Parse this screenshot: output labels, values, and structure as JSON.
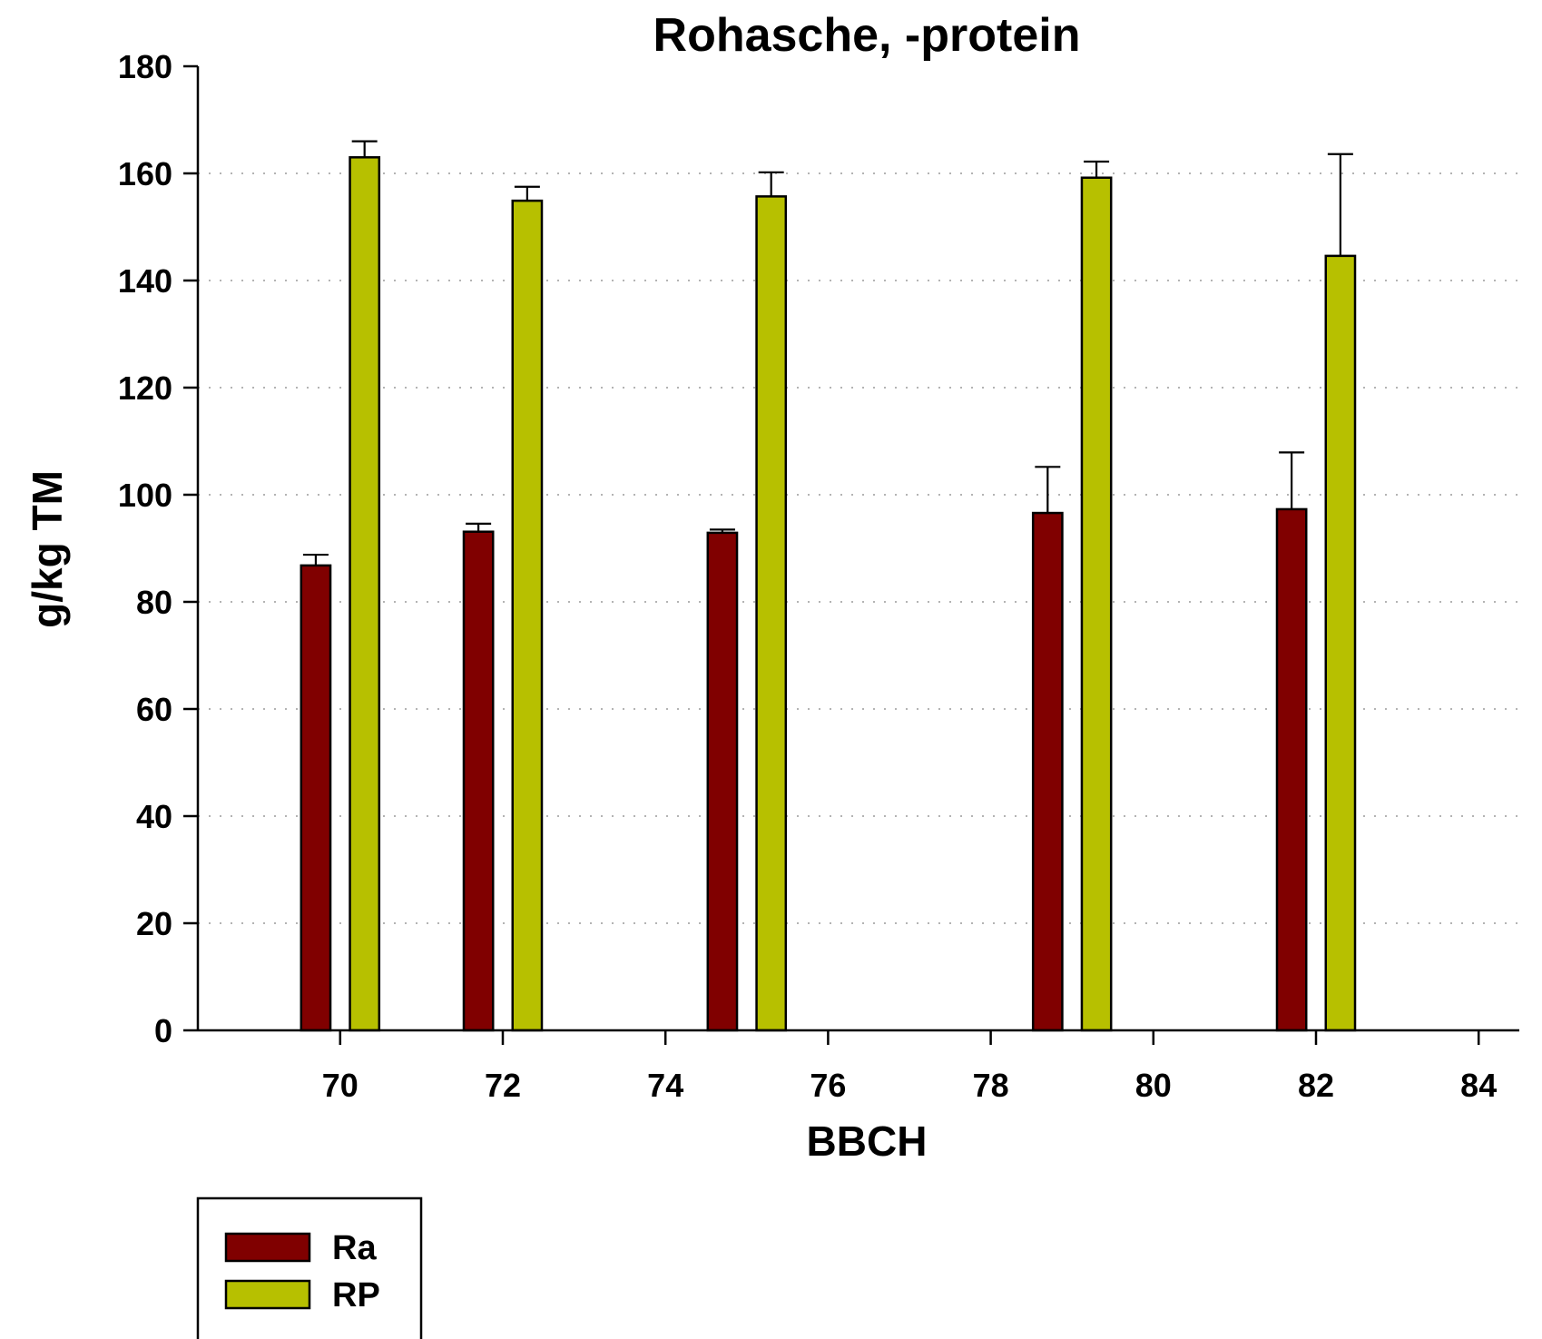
{
  "chart_data": {
    "type": "bar",
    "title": "Rohasche, -protein",
    "xlabel": "BBCH",
    "ylabel": "g/kg TM",
    "xlim": [
      68.25,
      84.5
    ],
    "ylim": [
      0,
      180
    ],
    "xticks": [
      70,
      72,
      74,
      76,
      78,
      80,
      82,
      84
    ],
    "yticks": [
      0,
      20,
      40,
      60,
      80,
      100,
      120,
      140,
      160,
      180
    ],
    "grid": "horizontal dotted",
    "bar_width": 0.36,
    "legend_position": "bottom-left",
    "series": [
      {
        "name": "Ra",
        "color": "#800000",
        "x": [
          69.7,
          71.7,
          74.7,
          78.7,
          81.7
        ],
        "values": [
          86.8,
          93.1,
          92.9,
          96.6,
          97.3
        ],
        "error": [
          2.0,
          1.5,
          0.6,
          8.6,
          10.6
        ]
      },
      {
        "name": "RP",
        "color": "#b7c000",
        "x": [
          70.3,
          72.3,
          75.3,
          79.3,
          82.3
        ],
        "values": [
          163.0,
          154.9,
          155.7,
          159.2,
          144.6
        ],
        "error": [
          3.0,
          2.6,
          4.5,
          3.0,
          19.0
        ]
      }
    ]
  }
}
